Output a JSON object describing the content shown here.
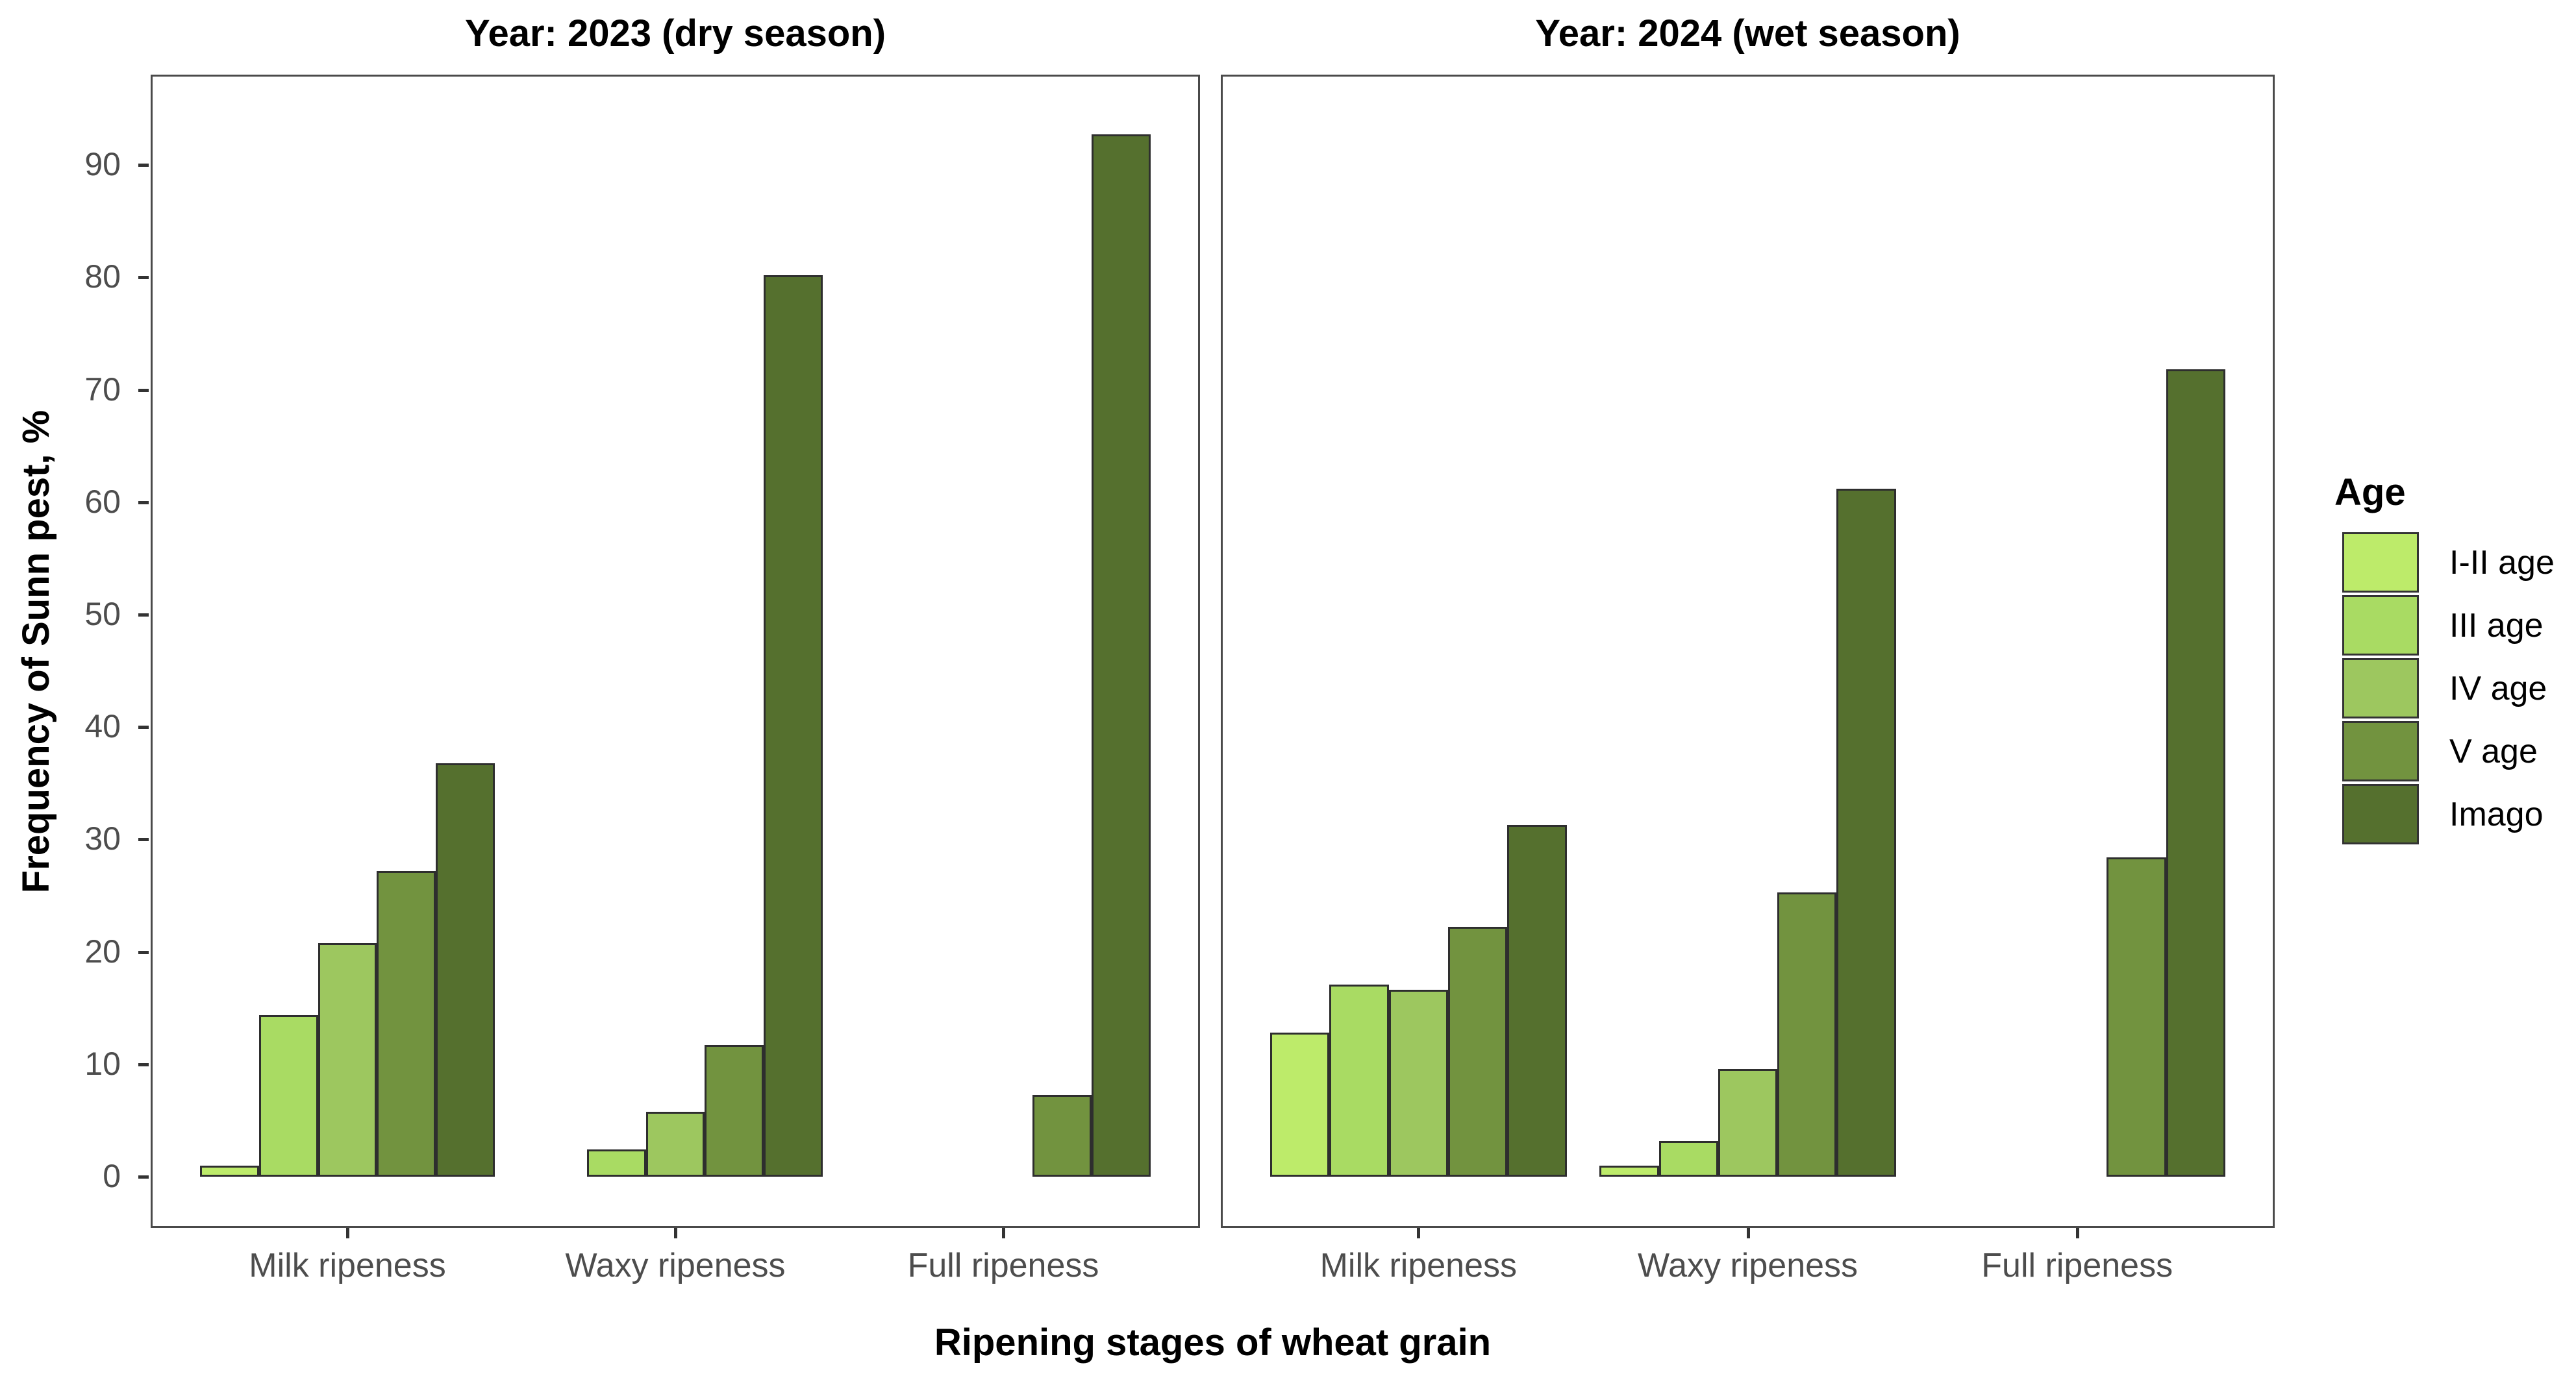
{
  "figure": {
    "y_axis": {
      "title": "Frequency of Sunn pest, %",
      "tick_values": [
        0,
        10,
        20,
        30,
        40,
        50,
        60,
        70,
        80,
        90
      ]
    },
    "x_axis": {
      "title": "Ripening stages of wheat grain",
      "categories": [
        "Milk ripeness",
        "Waxy ripeness",
        "Full ripeness"
      ]
    },
    "legend": {
      "title": "Age",
      "entries": [
        {
          "label": "I-II age",
          "color": "#bdeb6a"
        },
        {
          "label": "III age",
          "color": "#a9db63"
        },
        {
          "label": "IV age",
          "color": "#9dc75f"
        },
        {
          "label": "V age",
          "color": "#72933f"
        },
        {
          "label": "Imago",
          "color": "#55702e"
        }
      ]
    }
  },
  "chart_data": {
    "type": "bar",
    "title": "",
    "xlabel": "Ripening stages of wheat grain",
    "ylabel": "Frequency of Sunn pest, %",
    "ylim": [
      0,
      98
    ],
    "grid": false,
    "legend_position": "right",
    "age_order": [
      "I-II age",
      "III age",
      "IV age",
      "V age",
      "Imago"
    ],
    "categories": [
      "Milk ripeness",
      "Waxy ripeness",
      "Full ripeness"
    ],
    "facets": [
      {
        "title": "Year: 2023 (dry season)",
        "groups": [
          {
            "category": "Milk ripeness",
            "bars": [
              {
                "age": "I-II age",
                "value": 1.0
              },
              {
                "age": "III age",
                "value": 14.4
              },
              {
                "age": "IV age",
                "value": 20.8
              },
              {
                "age": "V age",
                "value": 27.2
              },
              {
                "age": "Imago",
                "value": 36.8
              }
            ]
          },
          {
            "category": "Waxy ripeness",
            "bars": [
              {
                "age": "III age",
                "value": 2.4
              },
              {
                "age": "IV age",
                "value": 5.8
              },
              {
                "age": "V age",
                "value": 11.7
              },
              {
                "age": "Imago",
                "value": 80.2
              }
            ]
          },
          {
            "category": "Full ripeness",
            "bars": [
              {
                "age": "V age",
                "value": 7.3
              },
              {
                "age": "Imago",
                "value": 92.7
              }
            ]
          }
        ]
      },
      {
        "title": "Year: 2024 (wet season)",
        "groups": [
          {
            "category": "Milk ripeness",
            "bars": [
              {
                "age": "I-II age",
                "value": 12.8
              },
              {
                "age": "III age",
                "value": 17.1
              },
              {
                "age": "IV age",
                "value": 16.6
              },
              {
                "age": "V age",
                "value": 22.2
              },
              {
                "age": "Imago",
                "value": 31.3
              }
            ]
          },
          {
            "category": "Waxy ripeness",
            "bars": [
              {
                "age": "I-II age",
                "value": 1.0
              },
              {
                "age": "III age",
                "value": 3.2
              },
              {
                "age": "IV age",
                "value": 9.6
              },
              {
                "age": "V age",
                "value": 25.3
              },
              {
                "age": "Imago",
                "value": 61.2
              }
            ]
          },
          {
            "category": "Full ripeness",
            "bars": [
              {
                "age": "V age",
                "value": 28.4
              },
              {
                "age": "Imago",
                "value": 71.8
              }
            ]
          }
        ]
      }
    ]
  }
}
